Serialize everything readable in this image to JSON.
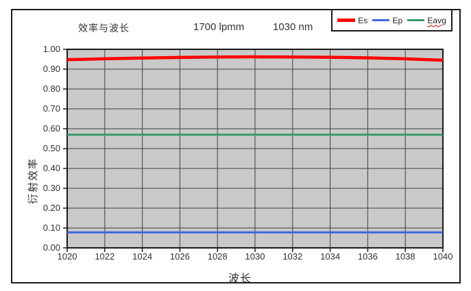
{
  "chart_data": {
    "type": "line",
    "title": "效率与波长",
    "annotations": [
      "1700 lpmm",
      "1030 nm"
    ],
    "xlabel": "波长",
    "ylabel": "衍射效率",
    "xlim": [
      1020,
      1040
    ],
    "ylim": [
      0.0,
      1.0
    ],
    "x_tick_labels": [
      "1020",
      "1022",
      "1024",
      "1026",
      "1028",
      "1030",
      "1032",
      "1034",
      "1036",
      "1038",
      "1040"
    ],
    "y_tick_labels": [
      "0.00",
      "0.10",
      "0.20",
      "0.30",
      "0.40",
      "0.50",
      "0.60",
      "0.70",
      "0.80",
      "0.90",
      "1.00"
    ],
    "grid": true,
    "legend_position": "top-right",
    "colors": {
      "plot_background": "#c9c9c9",
      "gridline": "#3f3f3f",
      "frame": "#1a1a1a",
      "text": "#333333",
      "spellcheck_underline": "#e00000"
    },
    "x": [
      1020,
      1022,
      1024,
      1026,
      1028,
      1030,
      1032,
      1034,
      1036,
      1038,
      1040
    ],
    "series": [
      {
        "name": "Es",
        "color": "#ff0000",
        "stroke_width": 4.5,
        "values": [
          0.948,
          0.952,
          0.956,
          0.959,
          0.961,
          0.962,
          0.961,
          0.96,
          0.957,
          0.952,
          0.945
        ]
      },
      {
        "name": "Ep",
        "color": "#4166e0",
        "stroke_width": 3,
        "values": [
          0.078,
          0.078,
          0.078,
          0.078,
          0.078,
          0.078,
          0.078,
          0.078,
          0.078,
          0.078,
          0.078
        ]
      },
      {
        "name": "Eavg",
        "color": "#3a9969",
        "stroke_width": 3,
        "values": [
          0.57,
          0.57,
          0.57,
          0.57,
          0.57,
          0.57,
          0.57,
          0.57,
          0.57,
          0.57,
          0.57
        ],
        "spellcheck_underline": true
      }
    ]
  }
}
